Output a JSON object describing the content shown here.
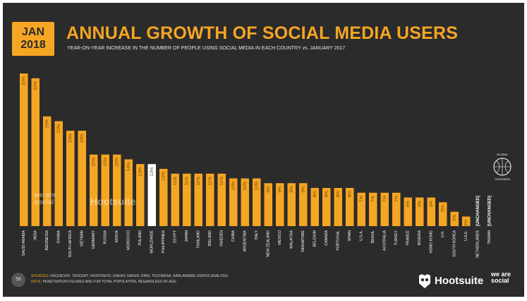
{
  "header": {
    "date_month": "JAN",
    "date_year": "2018",
    "title": "ANNUAL GROWTH OF SOCIAL MEDIA USERS",
    "subtitle": "YEAR-ON-YEAR INCREASE IN THE NUMBER OF PEOPLE USING SOCIAL MEDIA IN EACH COUNTRY vs. JANUARY 2017"
  },
  "colors": {
    "background": "#2b2b2b",
    "bar": "#f5a623",
    "highlight_bar": "#ffffff",
    "label_on_bar": "#7a4a00",
    "label_on_highlight": "#555555",
    "axis_label": "#ffffff"
  },
  "chart_data": {
    "type": "bar",
    "categories": [
      "SAUDI ARABIA",
      "INDIA",
      "INDONESIA",
      "GHANA",
      "SOUTH AFRICA",
      "VIETNAM",
      "GERMANY",
      "RUSSIA",
      "KENYA",
      "MOROCCO",
      "POLAND",
      "WORLDWIDE",
      "PHILIPPINES",
      "EGYPT",
      "JAPAN",
      "THAILAND",
      "IRELAND",
      "SWEDEN",
      "CHINA",
      "ARGENTINA",
      "ITALY",
      "NEW ZEALAND",
      "MEXICO",
      "MALAYSIA",
      "SINGAPORE",
      "BELGIUM",
      "CANADA",
      "PORTUGAL",
      "SPAIN",
      "U.S.A.",
      "BRAZIL",
      "AUSTRALIA",
      "TURKEY",
      "FRANCE",
      "NIGERIA",
      "HONG KONG",
      "U.K.",
      "SOUTH KOREA",
      "U.A.E.",
      "NETHERLANDS",
      "TAIWAN"
    ],
    "values": [
      32,
      31,
      23,
      22,
      20,
      20,
      15,
      15,
      15,
      14,
      13,
      13,
      12,
      11,
      11,
      11,
      11,
      11,
      10,
      10,
      10,
      9,
      9,
      9,
      9,
      8,
      8,
      8,
      8,
      7,
      7,
      7,
      7,
      6,
      6,
      6,
      5,
      3,
      2,
      0,
      0
    ],
    "value_labels": [
      "32%",
      "31%",
      "23%",
      "22%",
      "20%",
      "20%",
      "15%",
      "15%",
      "15%",
      "14%",
      "13%",
      "13%",
      "12%",
      "11%",
      "11%",
      "11%",
      "11%",
      "11%",
      "10%",
      "10%",
      "10%",
      "9%",
      "9%",
      "9%",
      "9%",
      "8%",
      "8%",
      "8%",
      "8%",
      "7%",
      "7%",
      "7%",
      "7%",
      "6%",
      "6%",
      "6%",
      "5%",
      "3%",
      "2%",
      "[UNCHANGED]",
      "[UNCHANGED]"
    ],
    "highlight": "WORLDWIDE",
    "ylim": [
      0,
      32
    ],
    "grid": false,
    "legend": "none"
  },
  "globe_badge": {
    "top": "GLOBAL",
    "bottom": "OVERVIEW"
  },
  "watermarks": {
    "we_are_social": "we are social",
    "hootsuite": "Hootsuite"
  },
  "footer": {
    "page_number": "56",
    "sources_label": "SOURCES:",
    "sources_text": "FACEBOOK; TENCENT; VKONTAKTE; KAKAO; NAVER; DING; TECHRASA; SIMILARWEB; KEPIOS ANALYSIS.",
    "note_label": "NOTE:",
    "note_text": "PENETRATION FIGURES ARE FOR TOTAL POPULATION, REGARDLESS OF AGE.",
    "hootsuite": "Hootsuite",
    "we_are": "we are",
    "social": "social"
  }
}
